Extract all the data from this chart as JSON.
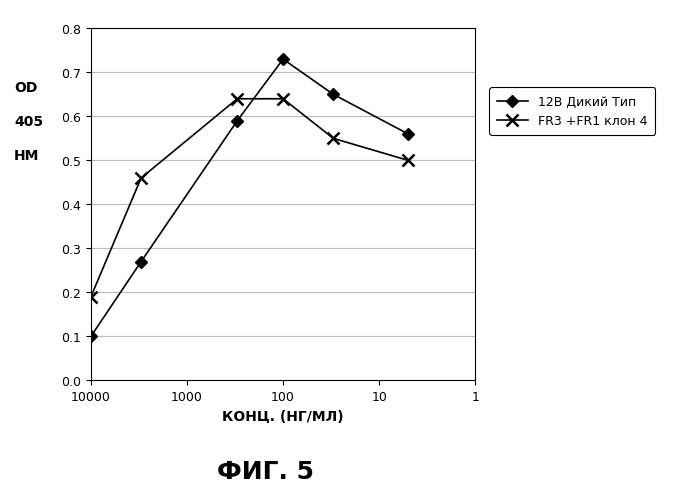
{
  "series1_label": "12В Дикий Тип",
  "series2_label": "FR3 +FR1 клон 4",
  "series1_x": [
    10000,
    3000,
    300,
    100,
    30,
    5
  ],
  "series1_y": [
    0.1,
    0.27,
    0.59,
    0.73,
    0.65,
    0.56
  ],
  "series2_x": [
    10000,
    3000,
    300,
    100,
    30,
    5
  ],
  "series2_y": [
    0.19,
    0.46,
    0.64,
    0.64,
    0.55,
    0.5
  ],
  "xlabel": "КОНЦ. (НГ/МЛ)",
  "ylabel_line1": "OD",
  "ylabel_line2": "405",
  "ylabel_line3": "НМ",
  "title": "ФИГ. 5",
  "xlim_left": 10000,
  "xlim_right": 1,
  "ylim": [
    0,
    0.8
  ],
  "yticks": [
    0,
    0.1,
    0.2,
    0.3,
    0.4,
    0.5,
    0.6,
    0.7,
    0.8
  ],
  "xticks": [
    10000,
    1000,
    100,
    10,
    1
  ],
  "line1_color": "#000000",
  "line2_color": "#000000",
  "marker1": "D",
  "marker2": "x",
  "bg_color": "#ffffff",
  "grid_color": "#bbbbbb"
}
